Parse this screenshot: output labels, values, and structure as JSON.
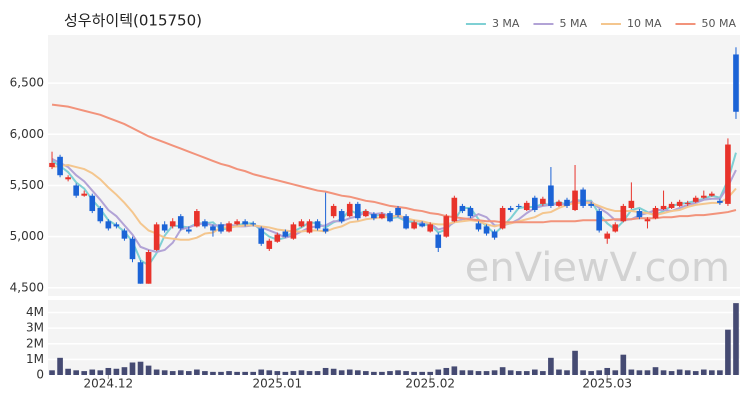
{
  "chart_data": {
    "type": "candlestick",
    "title": "성우하이텍(015750)",
    "watermark": "enViewV.com",
    "categories": [
      null,
      null,
      null,
      null,
      null,
      null,
      null,
      "2024.12",
      null,
      null,
      null,
      null,
      null,
      null,
      null,
      null,
      null,
      null,
      null,
      null,
      null,
      null,
      null,
      null,
      null,
      null,
      null,
      null,
      "2025.01",
      null,
      null,
      null,
      null,
      null,
      null,
      null,
      null,
      null,
      null,
      null,
      null,
      null,
      null,
      null,
      null,
      null,
      null,
      "2025.02",
      null,
      null,
      null,
      null,
      null,
      null,
      null,
      null,
      null,
      null,
      null,
      null,
      null,
      null,
      null,
      null,
      null,
      null,
      null,
      null,
      null,
      "2025.03",
      null,
      null,
      null,
      null,
      null,
      null,
      null,
      null,
      null,
      null,
      null,
      null,
      null,
      null,
      null,
      null
    ],
    "open": [
      5680,
      5780,
      5560,
      5500,
      5400,
      5400,
      5280,
      5150,
      5120,
      5060,
      4980,
      4750,
      4540,
      4870,
      5120,
      5100,
      5200,
      5070,
      5100,
      5150,
      5100,
      5120,
      5050,
      5120,
      5150,
      5130,
      5080,
      4880,
      4950,
      5050,
      4980,
      5100,
      5040,
      5150,
      5080,
      5200,
      5250,
      5200,
      5320,
      5200,
      5220,
      5180,
      5230,
      5280,
      5200,
      5080,
      5130,
      5050,
      5020,
      5000,
      5150,
      5300,
      5280,
      5130,
      5100,
      5050,
      5080,
      5280,
      5300,
      5260,
      5380,
      5320,
      5500,
      5300,
      5360,
      5260,
      5460,
      5320,
      5250,
      4980,
      5050,
      5150,
      5280,
      5250,
      5150,
      5180,
      5270,
      5280,
      5300,
      5320,
      5340,
      5380,
      5400,
      5350,
      5320,
      6780
    ],
    "high": [
      5830,
      5800,
      5600,
      5520,
      5450,
      5420,
      5300,
      5170,
      5140,
      5080,
      5000,
      4770,
      4870,
      5140,
      5150,
      5180,
      5220,
      5100,
      5270,
      5170,
      5120,
      5140,
      5150,
      5170,
      5170,
      5150,
      5100,
      4980,
      5040,
      5070,
      5140,
      5170,
      5170,
      5170,
      5430,
      5320,
      5270,
      5340,
      5340,
      5270,
      5240,
      5240,
      5250,
      5300,
      5220,
      5160,
      5150,
      5140,
      5040,
      5220,
      5400,
      5320,
      5300,
      5150,
      5120,
      5070,
      5300,
      5300,
      5320,
      5350,
      5400,
      5390,
      5680,
      5360,
      5380,
      5700,
      5480,
      5340,
      5270,
      5050,
      5140,
      5320,
      5530,
      5270,
      5190,
      5300,
      5450,
      5340,
      5360,
      5350,
      5400,
      5450,
      5440,
      5370,
      5960,
      6850
    ],
    "low": [
      5660,
      5580,
      5540,
      5380,
      5390,
      5230,
      5130,
      5060,
      5080,
      4960,
      4750,
      4540,
      4540,
      4860,
      5040,
      5080,
      5060,
      5030,
      5090,
      5080,
      5000,
      5030,
      5040,
      5110,
      5100,
      5100,
      4910,
      4860,
      4940,
      4990,
      4970,
      5090,
      5030,
      5060,
      5030,
      5180,
      5130,
      5190,
      5160,
      5190,
      5160,
      5170,
      5140,
      5190,
      5070,
      5070,
      5090,
      5040,
      4850,
      4990,
      5140,
      5230,
      5180,
      5050,
      5010,
      4970,
      5070,
      5240,
      5270,
      5250,
      5240,
      5300,
      5280,
      5290,
      5280,
      5250,
      5280,
      5280,
      5040,
      4930,
      5040,
      5140,
      5270,
      5170,
      5080,
      5170,
      5260,
      5270,
      5290,
      5300,
      5330,
      5370,
      5390,
      5310,
      5300,
      6150
    ],
    "close": [
      5720,
      5600,
      5580,
      5400,
      5420,
      5250,
      5150,
      5080,
      5100,
      4980,
      4780,
      4540,
      4850,
      5120,
      5060,
      5150,
      5080,
      5050,
      5250,
      5100,
      5060,
      5050,
      5130,
      5150,
      5120,
      5120,
      4930,
      4960,
      5020,
      5000,
      5120,
      5150,
      5150,
      5080,
      5050,
      5300,
      5150,
      5320,
      5180,
      5250,
      5180,
      5220,
      5150,
      5210,
      5080,
      5140,
      5100,
      5120,
      4890,
      5200,
      5380,
      5250,
      5200,
      5070,
      5030,
      4990,
      5280,
      5260,
      5290,
      5330,
      5260,
      5370,
      5300,
      5340,
      5300,
      5450,
      5300,
      5300,
      5060,
      5030,
      5120,
      5300,
      5350,
      5190,
      5170,
      5280,
      5300,
      5320,
      5340,
      5330,
      5380,
      5400,
      5420,
      5330,
      5900,
      6220
    ],
    "up_color": "#e8332b",
    "down_color": "#1b63d6",
    "ylim": [
      4420,
      6970
    ],
    "yticks": [
      {
        "value": 4500,
        "label": "4,500"
      },
      {
        "value": 5000,
        "label": "5,000"
      },
      {
        "value": 5500,
        "label": "5,500"
      },
      {
        "value": 6000,
        "label": "6,000"
      },
      {
        "value": 6500,
        "label": "6,500"
      }
    ],
    "grid": true,
    "ma_series": [
      {
        "name": "3 MA",
        "color": "#7fd0d4",
        "values": [
          5740,
          5690,
          5630,
          5530,
          5470,
          5360,
          5270,
          5160,
          5110,
          5050,
          4950,
          4770,
          4720,
          4840,
          5010,
          5110,
          5100,
          5090,
          5130,
          5130,
          5140,
          5070,
          5080,
          5110,
          5130,
          5130,
          5060,
          5000,
          4970,
          4990,
          5050,
          5090,
          5140,
          5130,
          5090,
          5140,
          5170,
          5260,
          5220,
          5250,
          5200,
          5220,
          5180,
          5190,
          5150,
          5140,
          5110,
          5120,
          5040,
          5070,
          5160,
          5280,
          5280,
          5170,
          5100,
          5030,
          5100,
          5180,
          5280,
          5290,
          5290,
          5320,
          5310,
          5340,
          5310,
          5360,
          5350,
          5350,
          5220,
          5130,
          5070,
          5150,
          5260,
          5280,
          5240,
          5210,
          5250,
          5300,
          5320,
          5330,
          5350,
          5370,
          5400,
          5380,
          5550,
          5820
        ]
      },
      {
        "name": "5 MA",
        "color": "#b2a3d6",
        "values": [
          5760,
          5720,
          5680,
          5600,
          5540,
          5450,
          5360,
          5260,
          5200,
          5110,
          5020,
          4900,
          4870,
          4850,
          4870,
          4940,
          5070,
          5090,
          5120,
          5130,
          5110,
          5110,
          5120,
          5100,
          5100,
          5110,
          5090,
          5060,
          5030,
          4990,
          5010,
          5050,
          5090,
          5100,
          5110,
          5150,
          5150,
          5180,
          5200,
          5240,
          5220,
          5230,
          5200,
          5200,
          5170,
          5160,
          5140,
          5130,
          5070,
          5090,
          5140,
          5170,
          5180,
          5220,
          5190,
          5110,
          5110,
          5130,
          5170,
          5230,
          5280,
          5300,
          5310,
          5320,
          5310,
          5350,
          5340,
          5340,
          5280,
          5230,
          5160,
          5160,
          5170,
          5210,
          5230,
          5260,
          5260,
          5250,
          5280,
          5310,
          5330,
          5360,
          5370,
          5370,
          5490,
          5650
        ]
      },
      {
        "name": "10 MA",
        "color": "#f4c68e",
        "values": [
          5680,
          5690,
          5700,
          5680,
          5660,
          5620,
          5560,
          5480,
          5410,
          5330,
          5240,
          5130,
          5060,
          5030,
          4990,
          4980,
          4970,
          4970,
          4990,
          5030,
          5040,
          5090,
          5090,
          5100,
          5110,
          5110,
          5100,
          5090,
          5070,
          5060,
          5050,
          5050,
          5060,
          5060,
          5050,
          5080,
          5100,
          5140,
          5150,
          5170,
          5180,
          5190,
          5190,
          5210,
          5180,
          5160,
          5150,
          5130,
          5120,
          5120,
          5140,
          5150,
          5160,
          5150,
          5120,
          5100,
          5120,
          5130,
          5150,
          5170,
          5190,
          5230,
          5240,
          5280,
          5310,
          5330,
          5330,
          5330,
          5300,
          5270,
          5250,
          5250,
          5250,
          5240,
          5230,
          5210,
          5230,
          5250,
          5260,
          5290,
          5310,
          5320,
          5330,
          5330,
          5380,
          5470
        ]
      },
      {
        "name": "50 MA",
        "color": "#f2937b",
        "values": [
          6290,
          6280,
          6270,
          6250,
          6230,
          6210,
          6190,
          6160,
          6130,
          6100,
          6060,
          6020,
          5980,
          5950,
          5920,
          5890,
          5860,
          5830,
          5800,
          5770,
          5740,
          5710,
          5690,
          5660,
          5640,
          5610,
          5590,
          5570,
          5550,
          5530,
          5510,
          5490,
          5470,
          5450,
          5440,
          5420,
          5400,
          5390,
          5370,
          5350,
          5340,
          5320,
          5300,
          5290,
          5280,
          5260,
          5250,
          5230,
          5220,
          5200,
          5190,
          5180,
          5170,
          5160,
          5150,
          5150,
          5140,
          5140,
          5140,
          5140,
          5140,
          5140,
          5150,
          5150,
          5150,
          5150,
          5160,
          5160,
          5160,
          5160,
          5170,
          5170,
          5170,
          5180,
          5180,
          5180,
          5190,
          5190,
          5200,
          5200,
          5210,
          5210,
          5220,
          5230,
          5240,
          5260
        ]
      }
    ],
    "volume": {
      "color": "#454a72",
      "values": [
        300000,
        1100000,
        400000,
        300000,
        250000,
        350000,
        300000,
        450000,
        400000,
        500000,
        800000,
        850000,
        600000,
        350000,
        300000,
        250000,
        300000,
        250000,
        350000,
        250000,
        200000,
        200000,
        250000,
        200000,
        200000,
        200000,
        350000,
        300000,
        250000,
        200000,
        250000,
        300000,
        250000,
        250000,
        450000,
        400000,
        300000,
        350000,
        300000,
        250000,
        200000,
        200000,
        250000,
        300000,
        250000,
        200000,
        200000,
        200000,
        350000,
        450000,
        550000,
        300000,
        300000,
        250000,
        250000,
        300000,
        500000,
        300000,
        250000,
        250000,
        350000,
        250000,
        1100000,
        350000,
        300000,
        1550000,
        300000,
        250000,
        300000,
        450000,
        300000,
        1300000,
        350000,
        300000,
        300000,
        500000,
        300000,
        250000,
        350000,
        300000,
        250000,
        350000,
        300000,
        300000,
        2900000,
        4600000
      ],
      "ylim": [
        0,
        4800000
      ],
      "yticks": [
        0,
        {
          "value": 1000000,
          "label": "1M"
        },
        {
          "value": 2000000,
          "label": "2M"
        },
        {
          "value": 3000000,
          "label": "3M"
        },
        {
          "value": 4000000,
          "label": "4M"
        }
      ]
    }
  }
}
